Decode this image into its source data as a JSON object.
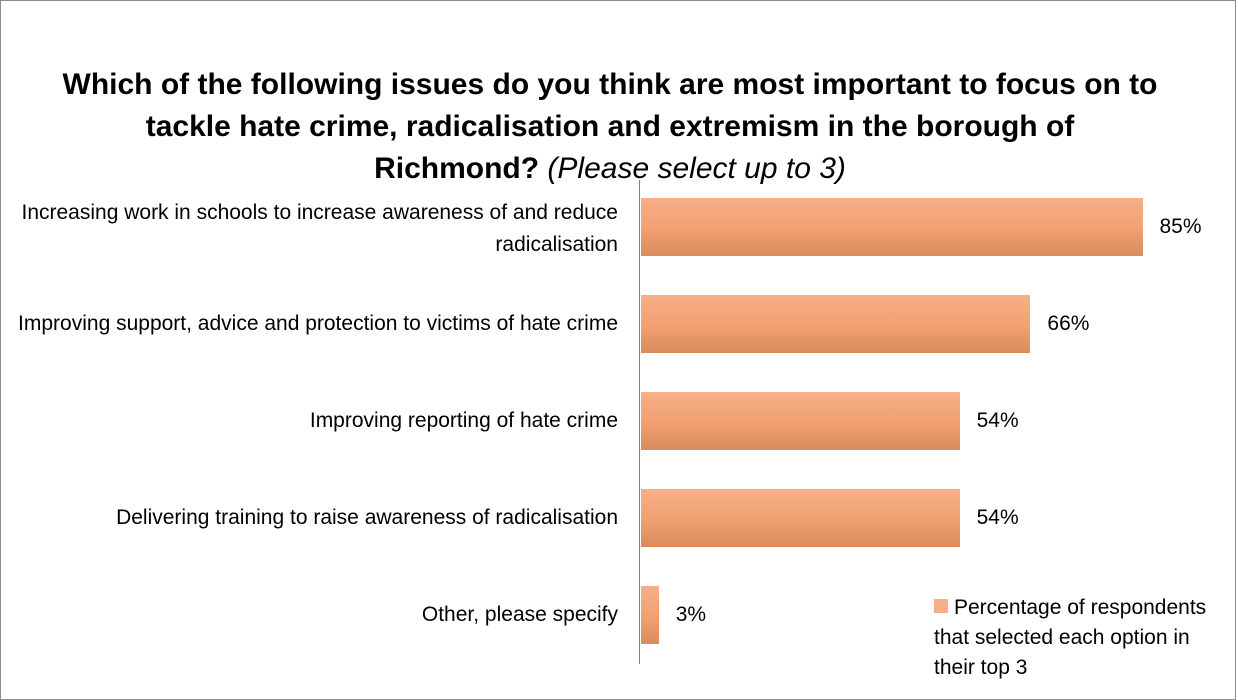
{
  "chart_data": {
    "type": "bar",
    "orientation": "horizontal",
    "title": "Which of the following issues do you think are most important to focus on to tackle hate crime, radicalisation and extremism in the borough of Richmond?",
    "title_note": "(Please select up to 3)",
    "categories": [
      "Increasing work in schools to increase awareness of and reduce radicalisation",
      "Improving support, advice and protection to victims of hate crime",
      "Improving reporting of hate crime",
      "Delivering training to raise awareness of radicalisation",
      "Other, please specify"
    ],
    "series": [
      {
        "name": "Percentage of respondents that selected each option in their top 3",
        "values": [
          85,
          66,
          54,
          54,
          3
        ],
        "labels": [
          "85%",
          "66%",
          "54%",
          "54%",
          "3%"
        ],
        "color": "#f0a070"
      }
    ],
    "xlim": [
      0,
      100
    ],
    "xlabel": "",
    "ylabel": "",
    "grid": false,
    "legend": "bottom-right"
  }
}
